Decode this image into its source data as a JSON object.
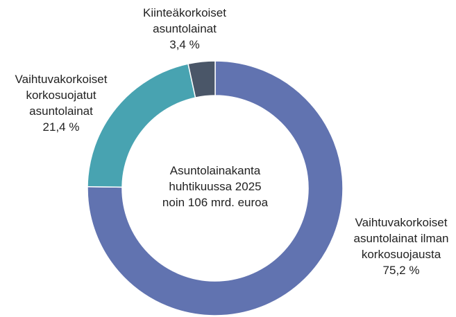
{
  "chart_data": {
    "type": "donut",
    "center_label": "Asuntolainakanta\nhuhtikuussa 2025\nnoin 106 mrd. euroa",
    "categories": [
      "Vaihtuvakorkoiset\nasuntolainat ilman\nkorkosuojausta",
      "Vaihtuvakorkoiset\nkorkosuojatut\nasuntolainat",
      "Kiinteäkorkoiset\nasuntolainat"
    ],
    "values": [
      75.2,
      21.4,
      3.4
    ],
    "value_labels": [
      "75,2 %",
      "21,4 %",
      "3,4 %"
    ],
    "colors": [
      "#6173b0",
      "#48a3b1",
      "#4a5668"
    ]
  }
}
